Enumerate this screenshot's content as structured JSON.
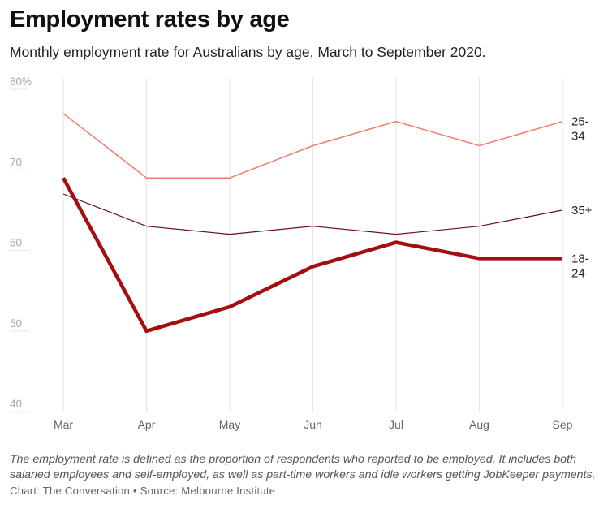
{
  "chart_data": {
    "type": "line",
    "title": "Employment rates by age",
    "subtitle": "Monthly employment rate for Australians by age, March to September 2020.",
    "x": [
      "Mar",
      "Apr",
      "May",
      "Jun",
      "Jul",
      "Aug",
      "Sep"
    ],
    "y_ticks": [
      "80%",
      "70",
      "60",
      "50",
      "40"
    ],
    "ylim": [
      40,
      80
    ],
    "series": [
      {
        "name": "25-34",
        "label_lines": [
          "25-",
          "34"
        ],
        "color": "#f07c6a",
        "values": [
          77,
          69,
          69,
          73,
          76,
          73,
          76
        ]
      },
      {
        "name": "35+",
        "label_lines": [
          "35+"
        ],
        "color": "#6b0f0f",
        "values": [
          67,
          63,
          62,
          63,
          62,
          63,
          65
        ]
      },
      {
        "name": "18-24",
        "label_lines": [
          "18-",
          "24"
        ],
        "color": "#a30f0f",
        "values": [
          69,
          50,
          53,
          58,
          61,
          59,
          59
        ]
      }
    ],
    "grid": "vertical",
    "legend": "direct labels at right end of lines"
  },
  "footer": {
    "note": "The employment rate is defined as the proportion of respondents who reported to be employed. It includes both salaried employees and self-employed, as well as part-time workers and idle workers getting JobKeeper payments.",
    "source": "Chart: The Conversation • Source: Melbourne Institute"
  }
}
